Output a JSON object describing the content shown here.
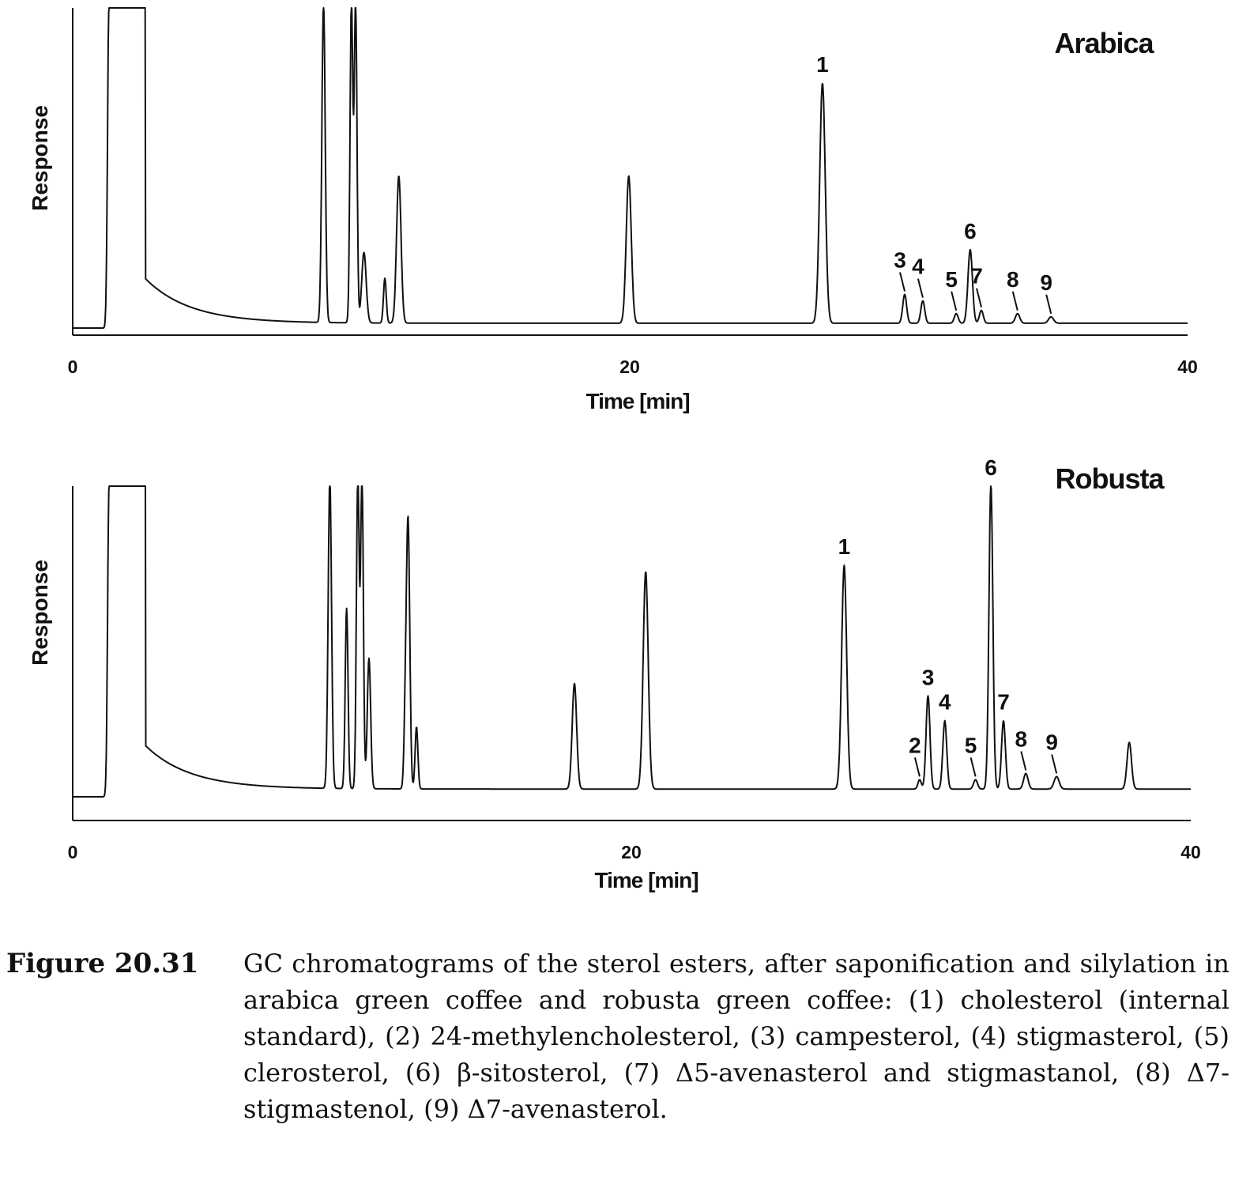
{
  "chart_data": [
    {
      "type": "line",
      "title": "Arabica",
      "xlabel": "Time [min]",
      "ylabel": "Response",
      "xlim": [
        0,
        40
      ],
      "ylim": [
        0,
        100
      ],
      "x_ticks": [
        "0",
        "20",
        "40"
      ],
      "grid": false,
      "baseline": 1.5,
      "noise_tail": 14,
      "peaks": [
        {
          "t": 1.3,
          "h": 100,
          "w": 0.05,
          "label": ""
        },
        {
          "t": 9.0,
          "h": 100,
          "w": 0.06,
          "label": ""
        },
        {
          "t": 10.0,
          "h": 100,
          "w": 0.05,
          "label": ""
        },
        {
          "t": 10.15,
          "h": 100,
          "w": 0.05,
          "label": ""
        },
        {
          "t": 10.45,
          "h": 22,
          "w": 0.08,
          "label": ""
        },
        {
          "t": 11.2,
          "h": 14,
          "w": 0.05,
          "label": ""
        },
        {
          "t": 11.7,
          "h": 46,
          "w": 0.08,
          "label": ""
        },
        {
          "t": 19.95,
          "h": 46,
          "w": 0.09,
          "label": ""
        },
        {
          "t": 26.9,
          "h": 75,
          "w": 0.1,
          "label": "1"
        },
        {
          "t": 29.85,
          "h": 9,
          "w": 0.07,
          "label": "3"
        },
        {
          "t": 30.5,
          "h": 7,
          "w": 0.07,
          "label": "4"
        },
        {
          "t": 31.7,
          "h": 3,
          "w": 0.07,
          "label": "5"
        },
        {
          "t": 32.2,
          "h": 23,
          "w": 0.08,
          "label": "6"
        },
        {
          "t": 32.6,
          "h": 4,
          "w": 0.07,
          "label": "7"
        },
        {
          "t": 33.9,
          "h": 3,
          "w": 0.08,
          "label": "8"
        },
        {
          "t": 35.1,
          "h": 2,
          "w": 0.09,
          "label": "9"
        }
      ]
    },
    {
      "type": "line",
      "title": "Robusta",
      "xlabel": "Time [min]",
      "ylabel": "Response",
      "xlim": [
        0,
        40
      ],
      "ylim": [
        0,
        100
      ],
      "x_ticks": [
        "0",
        "20",
        "40"
      ],
      "grid": false,
      "baseline": 2.5,
      "noise_tail": 14,
      "peaks": [
        {
          "t": 1.3,
          "h": 100,
          "w": 0.05,
          "label": ""
        },
        {
          "t": 9.2,
          "h": 100,
          "w": 0.06,
          "label": ""
        },
        {
          "t": 9.8,
          "h": 58,
          "w": 0.05,
          "label": ""
        },
        {
          "t": 10.2,
          "h": 100,
          "w": 0.05,
          "label": ""
        },
        {
          "t": 10.35,
          "h": 100,
          "w": 0.05,
          "label": ""
        },
        {
          "t": 10.6,
          "h": 42,
          "w": 0.06,
          "label": ""
        },
        {
          "t": 11.9,
          "h": 20,
          "w": 0.05,
          "label": ""
        },
        {
          "t": 12.0,
          "h": 85,
          "w": 0.06,
          "label": ""
        },
        {
          "t": 12.3,
          "h": 20,
          "w": 0.05,
          "label": ""
        },
        {
          "t": 17.95,
          "h": 34,
          "w": 0.08,
          "label": ""
        },
        {
          "t": 20.5,
          "h": 70,
          "w": 0.09,
          "label": ""
        },
        {
          "t": 27.6,
          "h": 72,
          "w": 0.09,
          "label": "1"
        },
        {
          "t": 30.3,
          "h": 3,
          "w": 0.06,
          "label": "2"
        },
        {
          "t": 30.6,
          "h": 30,
          "w": 0.07,
          "label": "3"
        },
        {
          "t": 31.2,
          "h": 22,
          "w": 0.07,
          "label": "4"
        },
        {
          "t": 32.3,
          "h": 3,
          "w": 0.07,
          "label": "5"
        },
        {
          "t": 32.85,
          "h": 98,
          "w": 0.07,
          "label": "6"
        },
        {
          "t": 33.3,
          "h": 22,
          "w": 0.07,
          "label": "7"
        },
        {
          "t": 34.1,
          "h": 5,
          "w": 0.08,
          "label": "8"
        },
        {
          "t": 35.2,
          "h": 4,
          "w": 0.09,
          "label": "9"
        },
        {
          "t": 37.8,
          "h": 15,
          "w": 0.08,
          "label": ""
        }
      ]
    }
  ],
  "caption": {
    "label": "Figure 20.31",
    "text": "GC chromatograms of the sterol esters, after saponification and silylation in arabica green coffee and robusta green coffee: (1) cholesterol (internal standard), (2) 24-methylencholesterol, (3) campesterol, (4) stigmasterol, (5) clerosterol, (6) β-sitosterol, (7) Δ5-avenasterol and stigmastanol, (8) Δ7-stigmastenol, (9) Δ7-avenasterol."
  }
}
